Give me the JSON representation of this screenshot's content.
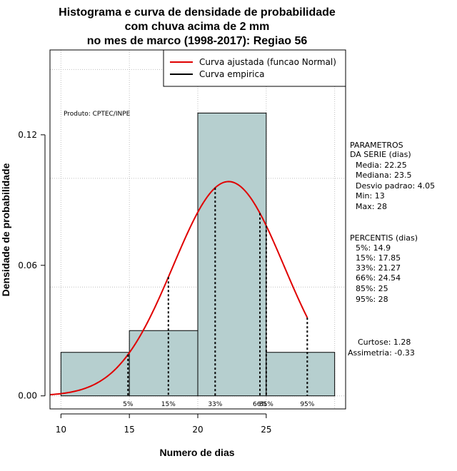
{
  "chart_data": {
    "type": "bar",
    "title_lines": [
      "Histograma e curva de densidade de probabilidade",
      "com chuva acima de 2 mm",
      "no mes de marco (1998-2017): Regiao 56"
    ],
    "xlabel": "Numero de dias",
    "ylabel": "Densidade de probabilidade",
    "xlim": [
      9.2,
      30.8
    ],
    "ylim": [
      -0.006,
      0.159
    ],
    "x_ticks": [
      10,
      15,
      20,
      25
    ],
    "y_ticks": [
      0.0,
      0.06,
      0.12
    ],
    "y_tick_labels": [
      "0.00",
      "0.06",
      "0.12"
    ],
    "grid_x": [
      10,
      15,
      20,
      25,
      30
    ],
    "grid_y": [
      0.05,
      0.1,
      0.15
    ],
    "histogram": [
      {
        "x0": 10,
        "x1": 15,
        "density": 0.02
      },
      {
        "x0": 15,
        "x1": 20,
        "density": 0.03
      },
      {
        "x0": 20,
        "x1": 25,
        "density": 0.13
      },
      {
        "x0": 25,
        "x1": 30,
        "density": 0.02
      }
    ],
    "normal_fit": {
      "mean": 22.25,
      "sd": 4.05,
      "x_from": 9.2,
      "x_to": 28
    },
    "percentile_marks": [
      {
        "label": "5%",
        "x": 14.9
      },
      {
        "label": "15%",
        "x": 17.85
      },
      {
        "label": "33%",
        "x": 21.27
      },
      {
        "label": "66%",
        "x": 24.54
      },
      {
        "label": "85%",
        "x": 25
      },
      {
        "label": "95%",
        "x": 28
      }
    ],
    "legend": [
      {
        "label": "Curva ajustada (funcao Normal)",
        "color": "#e00000"
      },
      {
        "label": "Curva empirica",
        "color": "#000000"
      }
    ],
    "product_note": "Produto: CPTEC/INPE",
    "colors": {
      "bar_fill": "#b6cfcf",
      "curve": "#e00000",
      "grid": "#bebebe"
    }
  },
  "parametros": {
    "header_lines": [
      "PARAMETROS",
      "DA SERIE (dias)"
    ],
    "items": [
      "Media: 22.25",
      "Mediana: 23.5",
      "Desvio padrao: 4.05",
      "Min: 13",
      "Max: 28"
    ]
  },
  "percentis": {
    "header": "PERCENTIS (dias)",
    "items": [
      "5%: 14.9",
      "15%: 17.85",
      "33%: 21.27",
      "66%: 24.54",
      "85%: 25",
      "95%: 28"
    ]
  },
  "forma": {
    "items": [
      "Curtose: 1.28",
      "Assimetria: -0.33"
    ]
  }
}
